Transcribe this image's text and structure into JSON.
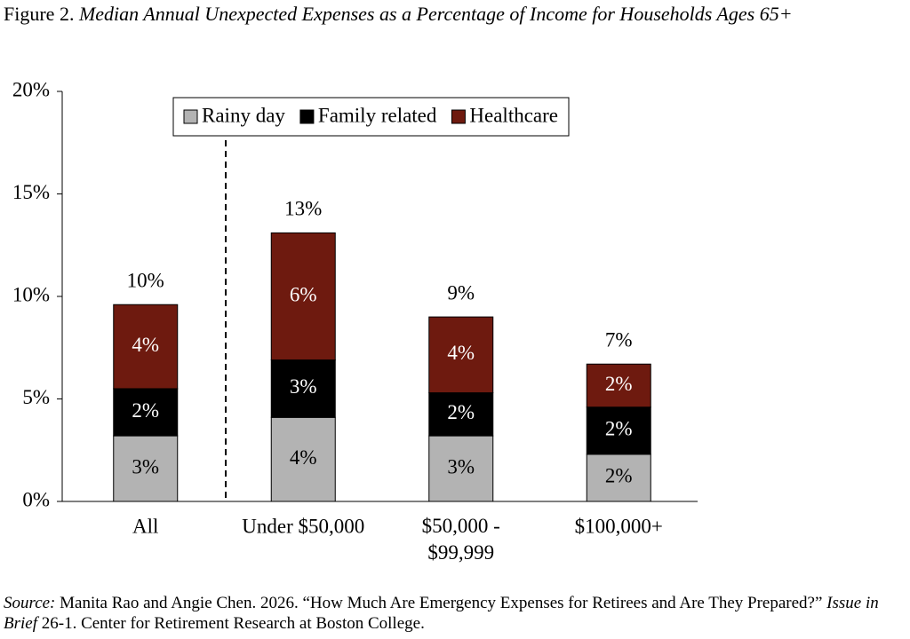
{
  "chart_data": {
    "type": "stacked_bar",
    "title_prefix": "Figure 2.",
    "title": "Median Annual Unexpected Expenses as a Percentage of Income for Households Ages 65+",
    "categories": [
      "All",
      "Under $50,000",
      "$50,000 - $99,999",
      "$100,000+"
    ],
    "series": [
      {
        "name": "Rainy day",
        "color": "#b3b3b3",
        "values": [
          3.2,
          4.1,
          3.2,
          2.3
        ],
        "value_labels": [
          "3%",
          "4%",
          "3%",
          "2%"
        ]
      },
      {
        "name": "Family related",
        "color": "#000000",
        "values": [
          2.3,
          2.8,
          2.1,
          2.3
        ],
        "value_labels": [
          "2%",
          "3%",
          "2%",
          "2%"
        ]
      },
      {
        "name": "Healthcare",
        "color": "#6e1a0f",
        "values": [
          4.1,
          6.2,
          3.7,
          2.1
        ],
        "value_labels": [
          "4%",
          "6%",
          "4%",
          "2%"
        ]
      }
    ],
    "totals": {
      "values": [
        9.6,
        13.1,
        9.0,
        6.7
      ],
      "value_labels": [
        "10%",
        "13%",
        "9%",
        "7%"
      ]
    },
    "ylim": [
      0,
      20
    ],
    "yticks": [
      {
        "value": 0,
        "label": "0%"
      },
      {
        "value": 5,
        "label": "5%"
      },
      {
        "value": 10,
        "label": "10%"
      },
      {
        "value": 15,
        "label": "15%"
      },
      {
        "value": 20,
        "label": "20%"
      }
    ],
    "grid": false,
    "legend": "top",
    "source": [
      {
        "text": "Source:",
        "italic": true
      },
      {
        "text": " Manita Rao and Angie Chen. 2026. “How Much Are Emergency Expenses for Retirees and Are They Prepared?” ",
        "italic": false
      },
      {
        "text": "Issue in Brief",
        "italic": true
      },
      {
        "text": " 26-1. Center for Retirement Research at Boston College.",
        "italic": false
      }
    ]
  }
}
